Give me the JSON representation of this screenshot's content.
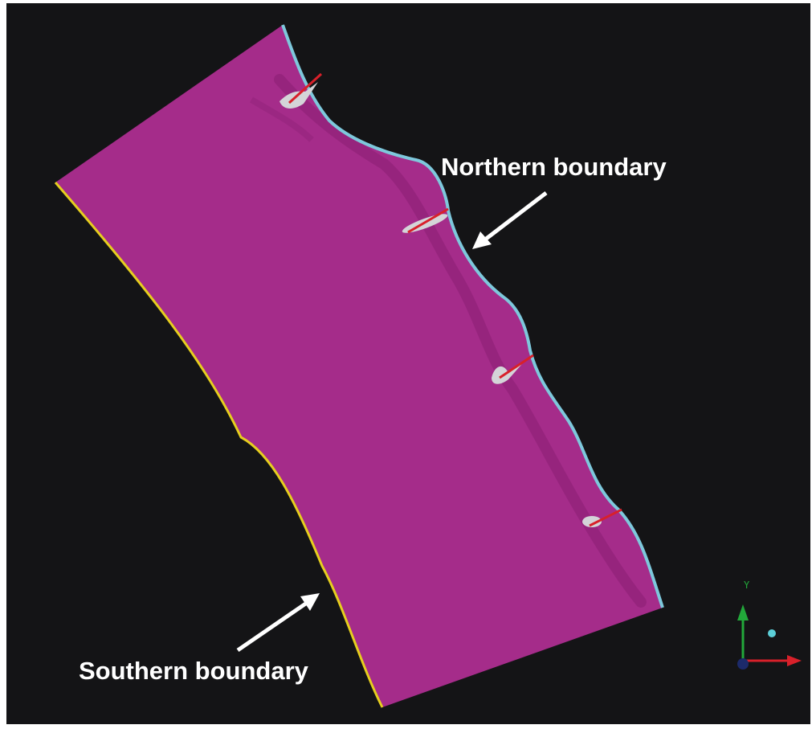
{
  "labels": {
    "northern": "Northern boundary",
    "southern": "Southern boundary"
  },
  "axes": {
    "y_label": "Y"
  },
  "colors": {
    "background": "#141416",
    "domain_fill": "#a52c8a",
    "northern_boundary": "#7ec8dc",
    "southern_boundary": "#e6cf1e",
    "feature_body": "#d4d4d8",
    "feature_line": "#d8202a",
    "axis_x": "#d8202a",
    "axis_y": "#22a83a",
    "axis_z": "#1c2a6a",
    "axis_point": "#5ccfd8",
    "arrow": "#ffffff"
  },
  "icons": {
    "triad": "xyz-axis-triad-icon"
  }
}
